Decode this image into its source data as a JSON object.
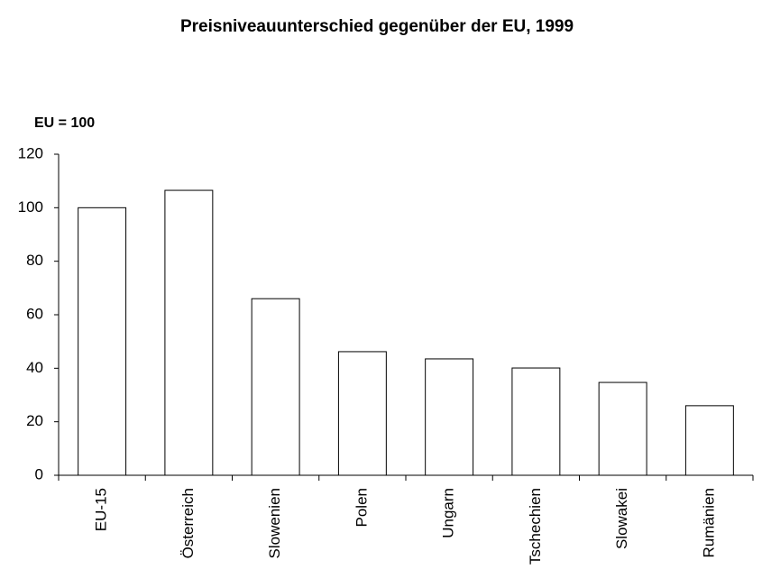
{
  "chart_data": {
    "type": "bar",
    "title": "Preisniveauunterschied gegenüber der EU, 1999",
    "y_label": "EU = 100",
    "categories": [
      "EU-15",
      "Österreich",
      "Slowenien",
      "Polen",
      "Ungarn",
      "Tschechien",
      "Slowakei",
      "Rumänien"
    ],
    "values": [
      100,
      106.5,
      66,
      46.2,
      43.5,
      40.1,
      34.7,
      26
    ],
    "color": "#ffffff",
    "ylim": [
      0,
      120
    ],
    "yticks": [
      0,
      20,
      40,
      60,
      80,
      100,
      120
    ],
    "grid": false
  }
}
